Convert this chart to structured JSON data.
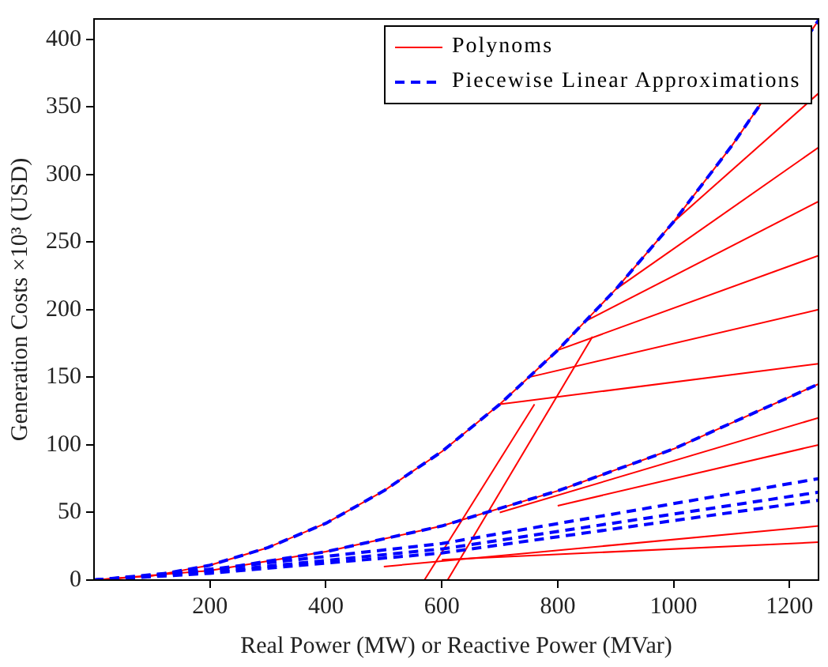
{
  "chart_data": {
    "type": "line",
    "xlabel": "Real Power (MW) or Reactive Power (MVar)",
    "ylabel": "Generation Costs ×10³ (USD)",
    "xlim": [
      0,
      1250
    ],
    "xticks": [
      200,
      400,
      600,
      800,
      1000,
      1200
    ],
    "ylim": [
      0,
      415
    ],
    "yticks": [
      0,
      50,
      100,
      150,
      200,
      250,
      300,
      350,
      400
    ],
    "grid": false,
    "legend": "top right",
    "marker": "none",
    "series": [
      {
        "name": "Polynoms",
        "color": "#ff0000",
        "line_style": "solid",
        "x": [
          0,
          100,
          200,
          300,
          400,
          500,
          600,
          700,
          800,
          900,
          1000,
          1100,
          1200,
          1250
        ],
        "values": [
          0,
          3,
          11,
          24,
          42,
          66,
          95,
          130,
          170,
          215,
          265,
          321,
          null,
          414
        ]
      },
      {
        "name": "Piecewise Linear Approximations",
        "color": "#0000ff",
        "line_style": "dashed",
        "x": [
          0,
          100,
          200,
          300,
          400,
          500,
          600,
          700,
          800,
          900,
          1000,
          1100,
          1200,
          1250
        ],
        "values": [
          0,
          3,
          11,
          24,
          42,
          66,
          95,
          130,
          170,
          215,
          265,
          321,
          null,
          414
        ]
      },
      {
        "color": "#ff0000",
        "line_style": "solid",
        "x": [
          0,
          200,
          400,
          600,
          800,
          1000,
          1250
        ],
        "values": [
          0,
          7,
          21,
          40,
          66,
          97,
          145
        ]
      },
      {
        "color": "#0000ff",
        "line_style": "dashed",
        "x": [
          0,
          200,
          400,
          600,
          800,
          1000,
          1250
        ],
        "values": [
          0,
          7,
          21,
          40,
          66,
          97,
          145
        ]
      },
      {
        "color": "#0000ff",
        "line_style": "dashed",
        "x": [
          0,
          200,
          600,
          1250
        ],
        "values": [
          0,
          8,
          27,
          75
        ]
      },
      {
        "color": "#0000ff",
        "line_style": "dashed",
        "x": [
          0,
          200,
          600,
          1250
        ],
        "values": [
          0,
          6,
          23,
          65
        ]
      },
      {
        "color": "#0000ff",
        "line_style": "dashed",
        "x": [
          0,
          200,
          600,
          1250
        ],
        "values": [
          0,
          5,
          20,
          59
        ]
      },
      {
        "color": "#ff0000",
        "line_style": "solid",
        "x": [
          700,
          1250
        ],
        "values": [
          130,
          160
        ]
      },
      {
        "color": "#ff0000",
        "line_style": "solid",
        "x": [
          750,
          1250
        ],
        "values": [
          150,
          200
        ]
      },
      {
        "color": "#ff0000",
        "line_style": "solid",
        "x": [
          800,
          1250
        ],
        "values": [
          170,
          240
        ]
      },
      {
        "color": "#ff0000",
        "line_style": "solid",
        "x": [
          850,
          1250
        ],
        "values": [
          192,
          280
        ]
      },
      {
        "color": "#ff0000",
        "line_style": "solid",
        "x": [
          900,
          1250
        ],
        "values": [
          215,
          320
        ]
      },
      {
        "color": "#ff0000",
        "line_style": "solid",
        "x": [
          1000,
          1250
        ],
        "values": [
          265,
          360
        ]
      },
      {
        "color": "#ff0000",
        "line_style": "solid",
        "x": [
          610,
          860
        ],
        "values": [
          0,
          180
        ]
      },
      {
        "color": "#ff0000",
        "line_style": "solid",
        "x": [
          570,
          760
        ],
        "values": [
          0,
          130
        ]
      },
      {
        "color": "#ff0000",
        "line_style": "solid",
        "x": [
          600,
          1250
        ],
        "values": [
          15,
          28
        ]
      },
      {
        "color": "#ff0000",
        "line_style": "solid",
        "x": [
          500,
          1250
        ],
        "values": [
          10,
          40
        ]
      },
      {
        "color": "#ff0000",
        "line_style": "solid",
        "x": [
          800,
          1250
        ],
        "values": [
          55,
          100
        ]
      },
      {
        "color": "#ff0000",
        "line_style": "solid",
        "x": [
          700,
          1250
        ],
        "values": [
          50,
          120
        ]
      }
    ]
  }
}
